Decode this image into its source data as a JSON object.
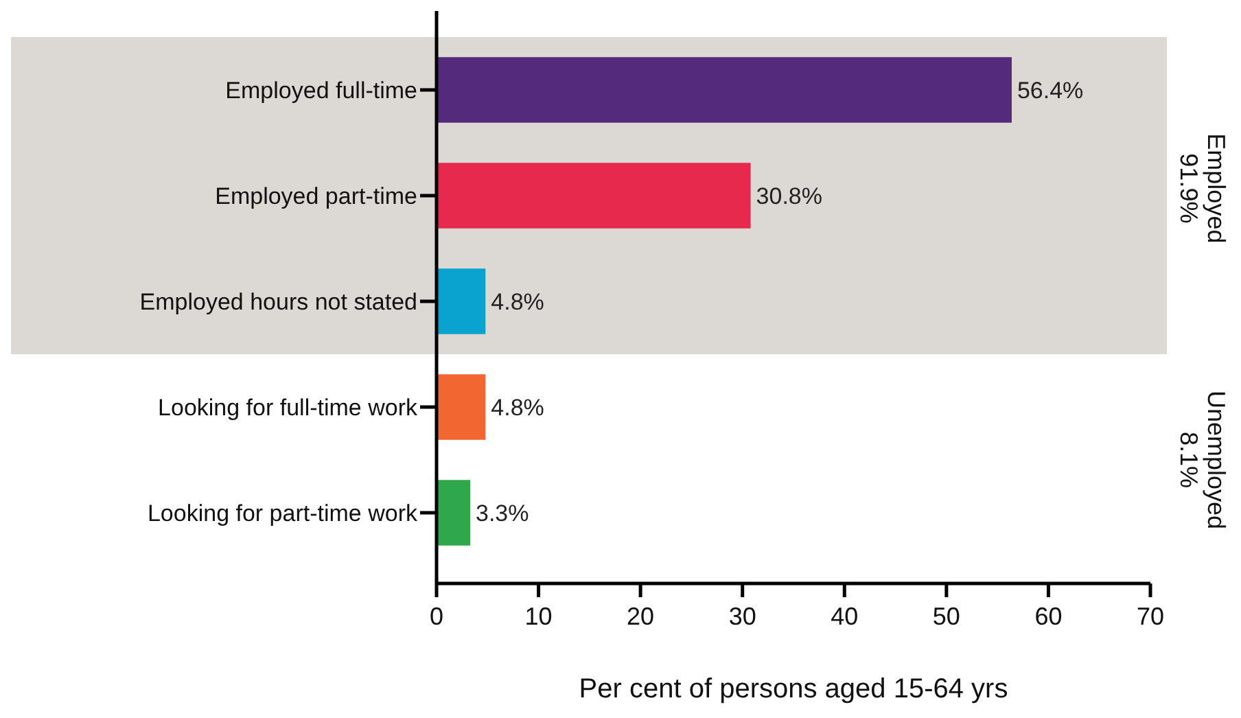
{
  "chart_data": {
    "type": "bar",
    "orientation": "horizontal",
    "categories": [
      "Employed full-time",
      "Employed part-time",
      "Employed hours not stated",
      "Looking for full-time work",
      "Looking for part-time work"
    ],
    "values": [
      56.4,
      30.8,
      4.8,
      4.8,
      3.3
    ],
    "colors": [
      "#532a7c",
      "#e6294c",
      "#0aa3d0",
      "#f26632",
      "#2ea84a"
    ],
    "value_labels": [
      "56.4%",
      "30.8%",
      "4.8%",
      "4.8%",
      "3.3%"
    ],
    "xlim": [
      0,
      70
    ],
    "xticks": [
      0,
      10,
      20,
      30,
      40,
      50,
      60,
      70
    ],
    "xlabel": "Per cent of persons aged 15-64 yrs",
    "bands": [
      {
        "axis": "y",
        "from": "Employed full-time",
        "to": "Employed hours not stated",
        "color": "#dcd8d4"
      }
    ],
    "annotations": [
      "Employed\n91.9%",
      "Unemployed\n8.1%"
    ]
  }
}
